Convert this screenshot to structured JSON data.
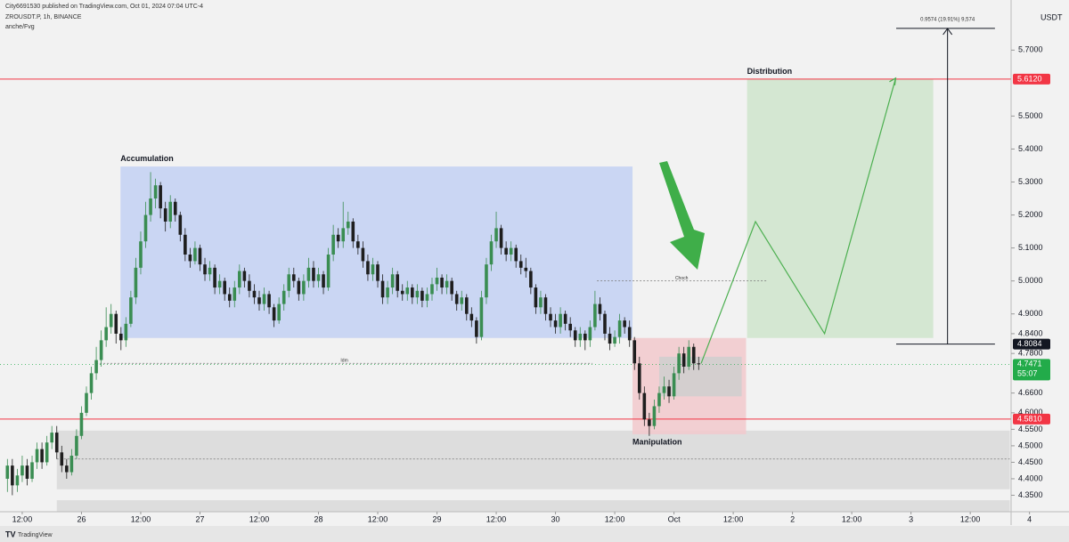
{
  "header": {
    "publisher": "City6691530 published on TradingView.com, Oct 01, 2024 07:04 UTC-4",
    "symbol": "ZROUSDT.P, 1h, BINANCE",
    "indicator": "anche/Fvg",
    "currency": "USDT",
    "brand": "TradingView"
  },
  "chart_data": {
    "type": "candlestick",
    "color_up": "#3a8d52",
    "color_down": "#1e1e1e",
    "xlim": [
      -4.5,
      212
    ],
    "ylim": [
      4.3,
      5.825
    ],
    "xticks": [
      {
        "value": 0,
        "label": "12:00"
      },
      {
        "value": 12,
        "label": "26"
      },
      {
        "value": 24,
        "label": "12:00"
      },
      {
        "value": 36,
        "label": "27"
      },
      {
        "value": 48,
        "label": "12:00"
      },
      {
        "value": 60,
        "label": "28"
      },
      {
        "value": 72,
        "label": "12:00"
      },
      {
        "value": 84,
        "label": "29"
      },
      {
        "value": 96,
        "label": "12:00"
      },
      {
        "value": 108,
        "label": "30"
      },
      {
        "value": 120,
        "label": "12:00"
      },
      {
        "value": 132,
        "label": "Oct"
      },
      {
        "value": 144,
        "label": "12:00"
      },
      {
        "value": 156,
        "label": "2"
      },
      {
        "value": 168,
        "label": "12:00"
      },
      {
        "value": 180,
        "label": "3"
      },
      {
        "value": 192,
        "label": "12:00"
      },
      {
        "value": 204,
        "label": "4"
      }
    ],
    "yticks": [
      {
        "value": 5.7,
        "label": "5.7000"
      },
      {
        "value": 5.5,
        "label": "5.5000"
      },
      {
        "value": 5.4,
        "label": "5.4000"
      },
      {
        "value": 5.3,
        "label": "5.3000"
      },
      {
        "value": 5.2,
        "label": "5.2000"
      },
      {
        "value": 5.1,
        "label": "5.1000"
      },
      {
        "value": 5.0,
        "label": "5.0000"
      },
      {
        "value": 4.9,
        "label": "4.9000"
      },
      {
        "value": 4.84,
        "label": "4.8400"
      },
      {
        "value": 4.78,
        "label": "4.7800"
      },
      {
        "value": 4.66,
        "label": "4.6600"
      },
      {
        "value": 4.6,
        "label": "4.6000"
      },
      {
        "value": 4.55,
        "label": "4.5500"
      },
      {
        "value": 4.5,
        "label": "4.5000"
      },
      {
        "value": 4.45,
        "label": "4.4500"
      },
      {
        "value": 4.4,
        "label": "4.4000"
      },
      {
        "value": 4.35,
        "label": "4.3500"
      }
    ],
    "x": [
      -3,
      -2,
      -1,
      0,
      1,
      2,
      3,
      4,
      5,
      6,
      7,
      8,
      9,
      10,
      11,
      12,
      13,
      14,
      15,
      16,
      17,
      18,
      19,
      20,
      21,
      22,
      23,
      24,
      25,
      26,
      27,
      28,
      29,
      30,
      31,
      32,
      33,
      34,
      35,
      36,
      37,
      38,
      39,
      40,
      41,
      42,
      43,
      44,
      45,
      46,
      47,
      48,
      49,
      50,
      51,
      52,
      53,
      54,
      55,
      56,
      57,
      58,
      59,
      60,
      61,
      62,
      63,
      64,
      65,
      66,
      67,
      68,
      69,
      70,
      71,
      72,
      73,
      74,
      75,
      76,
      77,
      78,
      79,
      80,
      81,
      82,
      83,
      84,
      85,
      86,
      87,
      88,
      89,
      90,
      91,
      92,
      93,
      94,
      95,
      96,
      97,
      98,
      99,
      100,
      101,
      102,
      103,
      104,
      105,
      106,
      107,
      108,
      109,
      110,
      111,
      112,
      113,
      114,
      115,
      116,
      117,
      118,
      119,
      120,
      121,
      122,
      123,
      124,
      125,
      126,
      127,
      128,
      129,
      130,
      131,
      132,
      133,
      134,
      135,
      136,
      137
    ],
    "ohlc": [
      [
        4.4,
        4.46,
        4.36,
        4.44
      ],
      [
        4.44,
        4.46,
        4.35,
        4.38
      ],
      [
        4.38,
        4.43,
        4.36,
        4.41
      ],
      [
        4.41,
        4.47,
        4.39,
        4.44
      ],
      [
        4.44,
        4.46,
        4.38,
        4.4
      ],
      [
        4.4,
        4.47,
        4.39,
        4.45
      ],
      [
        4.45,
        4.51,
        4.43,
        4.49
      ],
      [
        4.49,
        4.51,
        4.43,
        4.45
      ],
      [
        4.45,
        4.53,
        4.44,
        4.51
      ],
      [
        4.51,
        4.56,
        4.49,
        4.54
      ],
      [
        4.54,
        4.56,
        4.46,
        4.48
      ],
      [
        4.48,
        4.5,
        4.42,
        4.44
      ],
      [
        4.44,
        4.46,
        4.4,
        4.42
      ],
      [
        4.42,
        4.49,
        4.41,
        4.47
      ],
      [
        4.47,
        4.55,
        4.46,
        4.53
      ],
      [
        4.53,
        4.62,
        4.52,
        4.6
      ],
      [
        4.6,
        4.68,
        4.59,
        4.66
      ],
      [
        4.66,
        4.74,
        4.64,
        4.72
      ],
      [
        4.72,
        4.8,
        4.7,
        4.76
      ],
      [
        4.76,
        4.85,
        4.74,
        4.82
      ],
      [
        4.82,
        4.92,
        4.8,
        4.86
      ],
      [
        4.86,
        4.93,
        4.84,
        4.9
      ],
      [
        4.9,
        4.91,
        4.81,
        4.84
      ],
      [
        4.84,
        4.86,
        4.79,
        4.82
      ],
      [
        4.82,
        4.89,
        4.8,
        4.87
      ],
      [
        4.87,
        4.97,
        4.86,
        4.95
      ],
      [
        4.95,
        5.07,
        4.93,
        5.04
      ],
      [
        5.04,
        5.15,
        5.02,
        5.12
      ],
      [
        5.12,
        5.24,
        5.1,
        5.2
      ],
      [
        5.2,
        5.33,
        5.18,
        5.25
      ],
      [
        5.25,
        5.31,
        5.22,
        5.29
      ],
      [
        5.29,
        5.3,
        5.19,
        5.22
      ],
      [
        5.22,
        5.24,
        5.15,
        5.18
      ],
      [
        5.18,
        5.26,
        5.16,
        5.24
      ],
      [
        5.24,
        5.25,
        5.18,
        5.2
      ],
      [
        5.2,
        5.21,
        5.12,
        5.14
      ],
      [
        5.14,
        5.16,
        5.06,
        5.08
      ],
      [
        5.08,
        5.1,
        5.04,
        5.06
      ],
      [
        5.06,
        5.12,
        5.05,
        5.1
      ],
      [
        5.1,
        5.11,
        5.03,
        5.05
      ],
      [
        5.05,
        5.07,
        5.0,
        5.02
      ],
      [
        5.02,
        5.06,
        5.0,
        5.04
      ],
      [
        5.04,
        5.05,
        4.96,
        4.98
      ],
      [
        4.98,
        5.02,
        4.96,
        5.0
      ],
      [
        5.0,
        5.01,
        4.94,
        4.96
      ],
      [
        4.96,
        4.98,
        4.92,
        4.94
      ],
      [
        4.94,
        5.0,
        4.92,
        4.98
      ],
      [
        4.98,
        5.05,
        4.96,
        5.03
      ],
      [
        5.03,
        5.04,
        4.98,
        5.0
      ],
      [
        5.0,
        5.02,
        4.95,
        4.97
      ],
      [
        4.97,
        4.99,
        4.93,
        4.95
      ],
      [
        4.95,
        4.97,
        4.91,
        4.93
      ],
      [
        4.93,
        4.98,
        4.91,
        4.96
      ],
      [
        4.96,
        4.97,
        4.9,
        4.92
      ],
      [
        4.92,
        4.93,
        4.86,
        4.88
      ],
      [
        4.88,
        4.95,
        4.87,
        4.93
      ],
      [
        4.93,
        4.99,
        4.91,
        4.97
      ],
      [
        4.97,
        5.04,
        4.95,
        5.02
      ],
      [
        5.02,
        5.04,
        4.98,
        5.0
      ],
      [
        5.0,
        5.01,
        4.94,
        4.96
      ],
      [
        4.96,
        5.02,
        4.94,
        5.0
      ],
      [
        5.0,
        5.07,
        4.98,
        5.04
      ],
      [
        5.04,
        5.06,
        4.98,
        5.0
      ],
      [
        5.0,
        5.04,
        4.98,
        5.02
      ],
      [
        5.02,
        5.03,
        4.96,
        4.98
      ],
      [
        4.98,
        5.1,
        4.97,
        5.08
      ],
      [
        5.08,
        5.17,
        5.06,
        5.14
      ],
      [
        5.14,
        5.16,
        5.1,
        5.12
      ],
      [
        5.12,
        5.24,
        5.1,
        5.16
      ],
      [
        5.16,
        5.21,
        5.14,
        5.18
      ],
      [
        5.18,
        5.19,
        5.1,
        5.12
      ],
      [
        5.12,
        5.14,
        5.08,
        5.1
      ],
      [
        5.1,
        5.12,
        5.04,
        5.06
      ],
      [
        5.06,
        5.08,
        5.0,
        5.02
      ],
      [
        5.02,
        5.07,
        5.0,
        5.05
      ],
      [
        5.05,
        5.06,
        4.98,
        5.0
      ],
      [
        5.0,
        5.02,
        4.93,
        4.95
      ],
      [
        4.95,
        5.0,
        4.93,
        4.98
      ],
      [
        4.98,
        5.04,
        4.96,
        5.02
      ],
      [
        5.02,
        5.03,
        4.95,
        4.97
      ],
      [
        4.97,
        4.99,
        4.94,
        4.96
      ],
      [
        4.96,
        5.0,
        4.94,
        4.98
      ],
      [
        4.98,
        4.99,
        4.93,
        4.95
      ],
      [
        4.95,
        4.99,
        4.93,
        4.97
      ],
      [
        4.97,
        4.98,
        4.92,
        4.94
      ],
      [
        4.94,
        4.98,
        4.92,
        4.96
      ],
      [
        4.96,
        5.01,
        4.94,
        4.99
      ],
      [
        4.99,
        5.04,
        4.97,
        5.01
      ],
      [
        5.01,
        5.02,
        4.96,
        4.98
      ],
      [
        4.98,
        5.02,
        4.96,
        5.0
      ],
      [
        5.0,
        5.01,
        4.94,
        4.96
      ],
      [
        4.96,
        4.97,
        4.91,
        4.93
      ],
      [
        4.93,
        4.97,
        4.91,
        4.95
      ],
      [
        4.95,
        4.96,
        4.88,
        4.9
      ],
      [
        4.9,
        4.92,
        4.86,
        4.88
      ],
      [
        4.88,
        4.89,
        4.81,
        4.83
      ],
      [
        4.83,
        4.97,
        4.82,
        4.95
      ],
      [
        4.95,
        5.07,
        4.93,
        5.05
      ],
      [
        5.05,
        5.14,
        5.03,
        5.12
      ],
      [
        5.12,
        5.21,
        5.1,
        5.16
      ],
      [
        5.16,
        5.17,
        5.08,
        5.1
      ],
      [
        5.1,
        5.12,
        5.06,
        5.08
      ],
      [
        5.08,
        5.12,
        5.06,
        5.1
      ],
      [
        5.1,
        5.11,
        5.04,
        5.06
      ],
      [
        5.06,
        5.08,
        5.02,
        5.04
      ],
      [
        5.04,
        5.07,
        5.01,
        5.03
      ],
      [
        5.03,
        5.04,
        4.96,
        4.98
      ],
      [
        4.98,
        4.99,
        4.9,
        4.92
      ],
      [
        4.92,
        4.97,
        4.9,
        4.95
      ],
      [
        4.95,
        4.96,
        4.88,
        4.9
      ],
      [
        4.9,
        4.92,
        4.86,
        4.88
      ],
      [
        4.88,
        4.9,
        4.84,
        4.86
      ],
      [
        4.86,
        4.92,
        4.84,
        4.9
      ],
      [
        4.9,
        4.91,
        4.85,
        4.87
      ],
      [
        4.87,
        4.89,
        4.83,
        4.85
      ],
      [
        4.85,
        4.86,
        4.8,
        4.82
      ],
      [
        4.82,
        4.86,
        4.8,
        4.84
      ],
      [
        4.84,
        4.85,
        4.79,
        4.82
      ],
      [
        4.82,
        4.88,
        4.8,
        4.86
      ],
      [
        4.86,
        4.97,
        4.85,
        4.93
      ],
      [
        4.93,
        4.95,
        4.88,
        4.9
      ],
      [
        4.9,
        4.91,
        4.82,
        4.84
      ],
      [
        4.84,
        4.86,
        4.79,
        4.81
      ],
      [
        4.81,
        4.85,
        4.8,
        4.83
      ],
      [
        4.83,
        4.9,
        4.81,
        4.88
      ],
      [
        4.88,
        4.89,
        4.84,
        4.86
      ],
      [
        4.86,
        4.88,
        4.8,
        4.82
      ],
      [
        4.82,
        4.83,
        4.73,
        4.75
      ],
      [
        4.75,
        4.77,
        4.64,
        4.66
      ],
      [
        4.66,
        4.68,
        4.56,
        4.58
      ],
      [
        4.58,
        4.6,
        4.53,
        4.56
      ],
      [
        4.56,
        4.64,
        4.55,
        4.62
      ],
      [
        4.62,
        4.68,
        4.6,
        4.66
      ],
      [
        4.66,
        4.71,
        4.64,
        4.68
      ],
      [
        4.68,
        4.7,
        4.63,
        4.65
      ],
      [
        4.65,
        4.74,
        4.64,
        4.72
      ],
      [
        4.72,
        4.8,
        4.7,
        4.78
      ],
      [
        4.78,
        4.8,
        4.72,
        4.74
      ],
      [
        4.74,
        4.82,
        4.73,
        4.8
      ],
      [
        4.8,
        4.81,
        4.73,
        4.75
      ],
      [
        4.75,
        4.77,
        4.73,
        4.7471
      ]
    ],
    "zones": [
      {
        "x": [
          7,
          200
        ],
        "y": [
          4.368,
          4.546
        ],
        "color": "#d9d9d9"
      },
      {
        "x": [
          7,
          200
        ],
        "y": [
          4.3,
          4.335
        ],
        "color": "#d9d9d9"
      },
      {
        "x": [
          19.9,
          123.6
        ],
        "y": [
          4.827,
          5.347
        ],
        "color": "#c3d1f3"
      },
      {
        "x": [
          123.6,
          146.6
        ],
        "y": [
          4.535,
          4.827
        ],
        "color": "#f2c9cc"
      },
      {
        "x": [
          129,
          145.7
        ],
        "y": [
          4.65,
          4.77
        ],
        "color": "#cfcfcf"
      },
      {
        "x": [
          146.8,
          184.5
        ],
        "y": [
          4.827,
          5.612
        ],
        "color": "#cfe5cc"
      }
    ],
    "annotations": [
      {
        "text": "Accumulation",
        "x": 19.9,
        "y": 5.37
      },
      {
        "text": "Distribution",
        "x": 146.8,
        "y": 5.635
      },
      {
        "text": "Manipulation",
        "x": 123.6,
        "y": 4.51
      }
    ],
    "dotted_lines": [
      {
        "label": "Choch",
        "x": [
          116.4,
          150.7
        ],
        "y": 5.0
      },
      {
        "label": "Idm",
        "x": [
          15,
          115.5
        ],
        "y": 4.75
      },
      {
        "x": [
          7,
          200
        ],
        "y": 4.46
      }
    ],
    "levels": [
      {
        "value": 5.612,
        "label": "5.6120",
        "color": "#f23645"
      },
      {
        "value": 4.581,
        "label": "4.5810",
        "color": "#f23645"
      },
      {
        "value": 4.8084,
        "label": "4.8084",
        "color": "#131722",
        "x": [
          177,
          197
        ]
      }
    ],
    "current": {
      "value": 4.7471,
      "label": "4.7471",
      "countdown": "55:07",
      "color": "#22ab4a"
    },
    "projection": {
      "x": [
        137.5,
        148.5,
        162.5,
        176.9
      ],
      "y": [
        4.75,
        5.18,
        4.84,
        5.615
      ],
      "color": "#4caf50"
    },
    "measure": {
      "label": "0.9574 (19.91%) 9,574",
      "x": 187.4,
      "y": [
        4.8084,
        5.7658
      ],
      "x_range": [
        177,
        197
      ]
    }
  }
}
